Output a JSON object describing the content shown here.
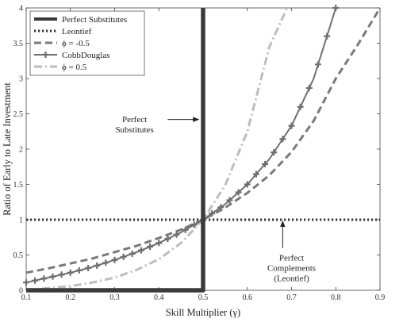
{
  "chart_data": {
    "type": "line",
    "xlabel": "Skill Multiplier (γ)",
    "ylabel": "Ratio of Early to Late Investment",
    "xlim": [
      0.1,
      0.9
    ],
    "ylim": [
      0,
      4
    ],
    "x_ticks": [
      "0.1",
      "0.2",
      "0.3",
      "0.4",
      "0.5",
      "0.6",
      "0.7",
      "0.8",
      "0.9"
    ],
    "y_ticks": [
      "0",
      "0.5",
      "1",
      "1.5",
      "2",
      "2.5",
      "3",
      "3.5",
      "4"
    ],
    "grid": false,
    "legend_position": "top-left",
    "series": [
      {
        "name": "Perfect Substitutes",
        "style": "solid-thick",
        "color": "#3a3a3a",
        "x": [
          0.1,
          0.5,
          0.5,
          0.5
        ],
        "y": [
          0,
          0,
          1,
          4
        ]
      },
      {
        "name": "Leontief",
        "style": "dotted",
        "color": "#333333",
        "x": [
          0.1,
          0.9
        ],
        "y": [
          1,
          1
        ]
      },
      {
        "name": "ϕ = -0.5",
        "style": "dashed",
        "color": "#7a7a7a",
        "x": [
          0.1,
          0.15,
          0.2,
          0.25,
          0.3,
          0.35,
          0.4,
          0.45,
          0.5,
          0.55,
          0.6,
          0.65,
          0.7,
          0.75,
          0.8,
          0.85,
          0.9
        ],
        "y": [
          0.25,
          0.31,
          0.38,
          0.45,
          0.54,
          0.63,
          0.74,
          0.86,
          1.0,
          1.17,
          1.38,
          1.63,
          1.96,
          2.4,
          3.0,
          3.48,
          4.0
        ]
      },
      {
        "name": "CobbDouglas",
        "style": "solid-plus-markers",
        "color": "#6e6e6e",
        "x": [
          0.1,
          0.15,
          0.2,
          0.25,
          0.3,
          0.35,
          0.4,
          0.45,
          0.5,
          0.55,
          0.6,
          0.65,
          0.7,
          0.75,
          0.8
        ],
        "y": [
          0.11,
          0.18,
          0.25,
          0.33,
          0.43,
          0.54,
          0.67,
          0.82,
          1.0,
          1.22,
          1.5,
          1.86,
          2.33,
          3.0,
          4.0
        ]
      },
      {
        "name": "ϕ = 0.5",
        "style": "dash-dot",
        "color": "#bdbdbd",
        "x": [
          0.1,
          0.15,
          0.2,
          0.25,
          0.3,
          0.35,
          0.4,
          0.45,
          0.5,
          0.55,
          0.6,
          0.65,
          0.69
        ],
        "y": [
          0.01,
          0.03,
          0.06,
          0.11,
          0.18,
          0.29,
          0.44,
          0.67,
          1.0,
          1.49,
          2.25,
          3.45,
          4.0
        ]
      }
    ],
    "annotations": [
      {
        "lines": [
          "Perfect",
          "Substitutes"
        ],
        "x": 0.345,
        "y": 2.38,
        "arrow_from": [
          0.42,
          2.42
        ],
        "arrow_to": [
          0.49,
          2.42
        ]
      },
      {
        "lines": [
          "Perfect",
          "Complements",
          "(Leontief)"
        ],
        "x": 0.7,
        "y": 0.42,
        "arrow_from": [
          0.68,
          0.6
        ],
        "arrow_to": [
          0.68,
          0.98
        ]
      }
    ]
  }
}
